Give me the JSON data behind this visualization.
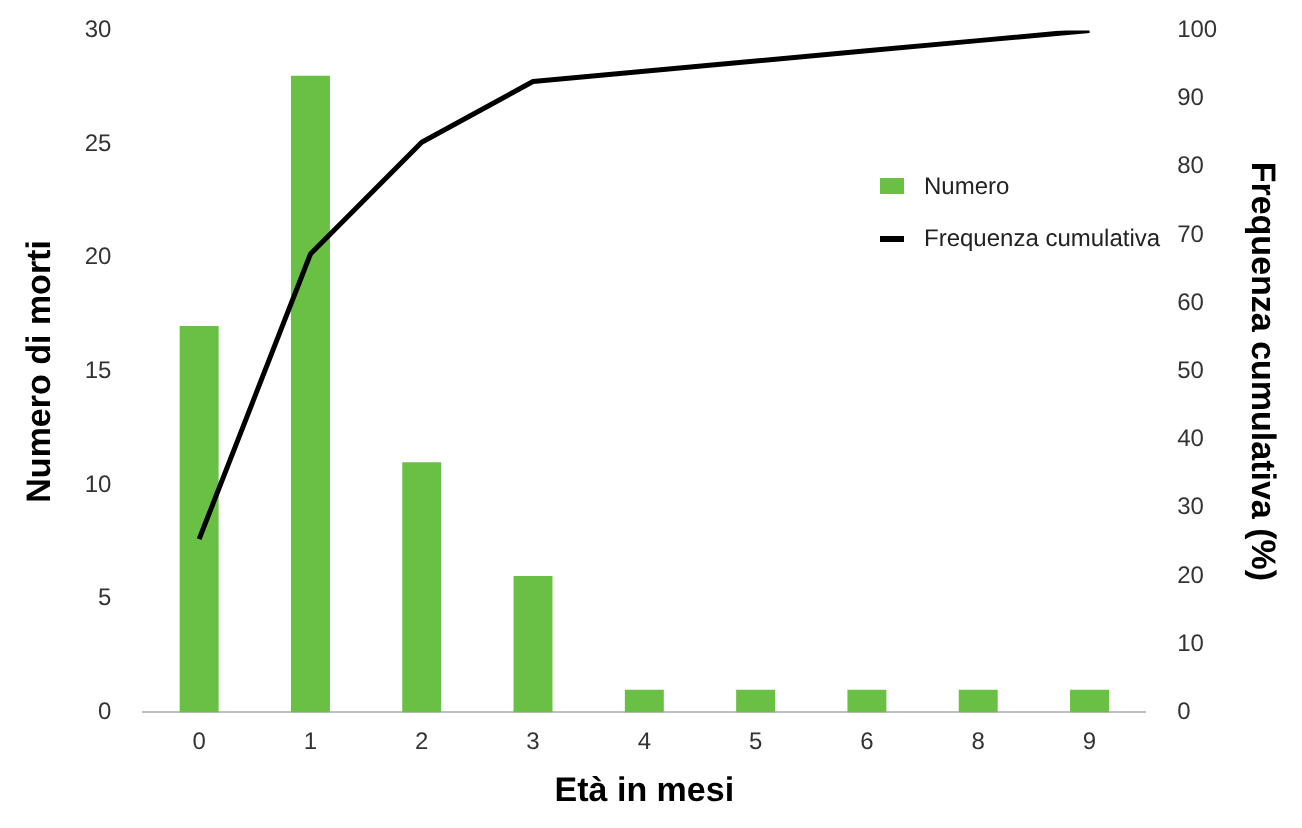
{
  "chart_data": {
    "type": "bar",
    "xlabel": "Età in mesi",
    "ylabel": "Numero di morti",
    "y2label": "Frequenza cumulativa (%)",
    "categories": [
      "0",
      "1",
      "2",
      "3",
      "4",
      "5",
      "6",
      "8",
      "9"
    ],
    "series": [
      {
        "name": "Numero",
        "color": "#6abf45",
        "values": [
          17,
          28,
          11,
          6,
          1,
          1,
          1,
          1,
          1
        ]
      },
      {
        "name": "Frequenza cumulativa",
        "type": "line",
        "axis": "y2",
        "color": "#000000",
        "values": [
          25.4,
          67.2,
          83.6,
          92.5,
          94.0,
          95.5,
          97.0,
          98.5,
          100
        ]
      }
    ],
    "ylim": [
      0,
      30
    ],
    "yticks": [
      0,
      5,
      10,
      15,
      20,
      25,
      30
    ],
    "y2lim": [
      0,
      100
    ],
    "y2ticks": [
      0,
      10,
      20,
      30,
      40,
      50,
      60,
      70,
      80,
      90,
      100
    ],
    "grid": false,
    "legend": "top right",
    "marker": "none",
    "line_style": "solid"
  }
}
